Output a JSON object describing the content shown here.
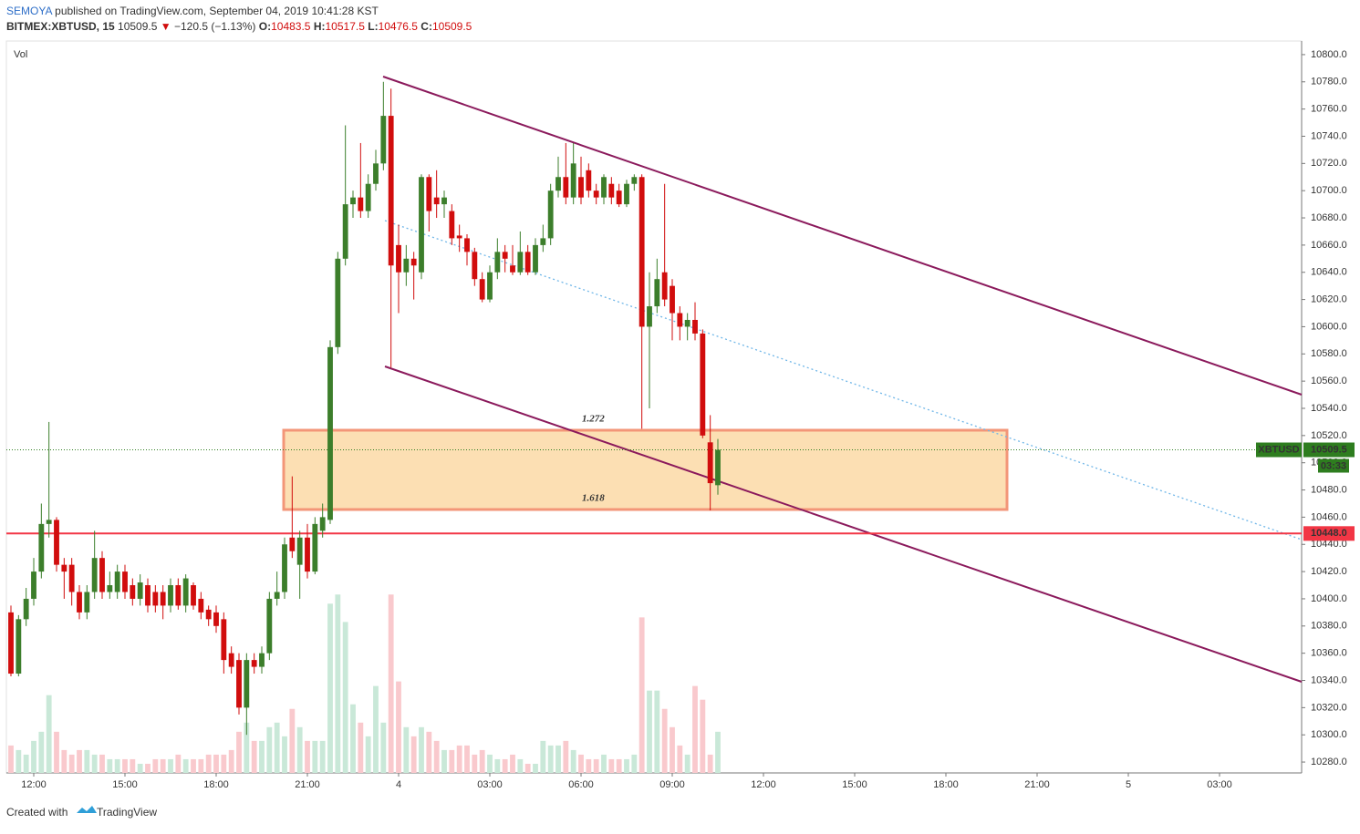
{
  "header": {
    "author": "SEMOYA",
    "published": "published on TradingView.com, September 04, 2019 10:41:28 KST",
    "symbol": "BITMEX:XBTUSD, 15",
    "last": "10509.5",
    "arrow": "▼",
    "change": "−120.5 (−1.13%)",
    "o_label": "O:",
    "open": "10483.5",
    "h_label": "H:",
    "high": "10517.5",
    "l_label": "L:",
    "low": "10476.5",
    "c_label": "C:",
    "close": "10509.5"
  },
  "footer": {
    "created": "Created with",
    "brand": "TradingView"
  },
  "annotations": {
    "fib_upper": "1.272",
    "fib_lower": "1.618"
  },
  "chart_data": {
    "type": "candlestick",
    "volume_label": "Vol",
    "up_color": "#3c7e2b",
    "down_color": "#d10d0d",
    "volume_up_color": "#c9e8d8",
    "volume_down_color": "#f9c9cd",
    "open": [
      10390,
      10345,
      10385,
      10400,
      10420,
      10455,
      10458,
      10425,
      10425,
      10405,
      10390,
      10405,
      10430,
      10405,
      10405,
      10420,
      10410,
      10400,
      10410,
      10405,
      10405,
      10395,
      10410,
      10395,
      10410,
      10400,
      10392,
      10390,
      10385,
      10360,
      10355,
      10320,
      10355,
      10350,
      10360,
      10400,
      10405,
      10445,
      10425,
      10445,
      10420,
      10450,
      10458,
      10585,
      10650,
      10690,
      10695,
      10685,
      10705,
      10720,
      10755,
      10660,
      10640,
      10650,
      10640,
      10710,
      10695,
      10690,
      10685,
      10667,
      10665,
      10655,
      10635,
      10620,
      10640,
      10655,
      10645,
      10640,
      10655,
      10640,
      10660,
      10665,
      10700,
      10710,
      10695,
      10710,
      10715,
      10700,
      10695,
      10705,
      10700,
      10690,
      10705,
      10710,
      10600,
      10615,
      10640,
      10630,
      10610,
      10600,
      10605,
      10595,
      10515,
      10483.5
    ],
    "high": [
      10395,
      10388,
      10408,
      10430,
      10470,
      10530,
      10460,
      10430,
      10430,
      10410,
      10410,
      10450,
      10435,
      10420,
      10425,
      10425,
      10415,
      10418,
      10415,
      10410,
      10410,
      10415,
      10415,
      10418,
      10412,
      10405,
      10395,
      10395,
      10390,
      10365,
      10360,
      10360,
      10360,
      10365,
      10405,
      10420,
      10445,
      10490,
      10450,
      10455,
      10460,
      10470,
      10590,
      10655,
      10748,
      10700,
      10735,
      10712,
      10730,
      10780,
      10775,
      10675,
      10660,
      10655,
      10712,
      10712,
      10715,
      10700,
      10690,
      10675,
      10668,
      10658,
      10640,
      10645,
      10665,
      10660,
      10660,
      10670,
      10660,
      10665,
      10675,
      10705,
      10725,
      10735,
      10735,
      10725,
      10720,
      10705,
      10712,
      10710,
      10705,
      10708,
      10712,
      10712,
      10640,
      10650,
      10705,
      10635,
      10615,
      10610,
      10618,
      10598,
      10535,
      10517.5
    ],
    "low": [
      10343,
      10343,
      10380,
      10395,
      10415,
      10445,
      10420,
      10400,
      10395,
      10385,
      10385,
      10400,
      10400,
      10400,
      10400,
      10400,
      10395,
      10395,
      10390,
      10390,
      10385,
      10390,
      10392,
      10390,
      10392,
      10385,
      10380,
      10375,
      10345,
      10345,
      10315,
      10300,
      10345,
      10345,
      10355,
      10395,
      10400,
      10430,
      10400,
      10415,
      10418,
      10445,
      10455,
      10580,
      10645,
      10680,
      10680,
      10680,
      10700,
      10715,
      10570,
      10610,
      10630,
      10620,
      10635,
      10670,
      10680,
      10680,
      10660,
      10655,
      10645,
      10630,
      10618,
      10618,
      10635,
      10640,
      10638,
      10638,
      10638,
      10638,
      10655,
      10660,
      10695,
      10690,
      10690,
      10690,
      10695,
      10690,
      10690,
      10690,
      10688,
      10688,
      10700,
      10525,
      10540,
      10610,
      10615,
      10590,
      10590,
      10590,
      10590,
      10518,
      10465,
      10476.5
    ],
    "close": [
      10345,
      10385,
      10400,
      10420,
      10455,
      10458,
      10425,
      10420,
      10405,
      10390,
      10405,
      10430,
      10405,
      10410,
      10420,
      10405,
      10400,
      10412,
      10395,
      10395,
      10395,
      10410,
      10395,
      10415,
      10395,
      10390,
      10385,
      10380,
      10355,
      10350,
      10320,
      10355,
      10350,
      10360,
      10400,
      10405,
      10440,
      10435,
      10445,
      10420,
      10455,
      10460,
      10585,
      10650,
      10690,
      10695,
      10685,
      10705,
      10720,
      10755,
      10645,
      10640,
      10650,
      10645,
      10710,
      10685,
      10690,
      10695,
      10665,
      10665,
      10655,
      10635,
      10620,
      10640,
      10655,
      10650,
      10640,
      10655,
      10640,
      10660,
      10665,
      10700,
      10710,
      10695,
      10720,
      10695,
      10700,
      10695,
      10710,
      10695,
      10690,
      10705,
      10710,
      10600,
      10615,
      10635,
      10620,
      10610,
      10600,
      10605,
      10595,
      10520,
      10485,
      10509.5
    ],
    "volume": [
      30,
      25,
      20,
      35,
      45,
      85,
      45,
      25,
      20,
      25,
      25,
      20,
      20,
      15,
      15,
      15,
      15,
      10,
      10,
      15,
      15,
      15,
      20,
      15,
      15,
      15,
      20,
      20,
      20,
      25,
      45,
      55,
      35,
      35,
      50,
      55,
      40,
      70,
      50,
      35,
      35,
      35,
      185,
      195,
      165,
      75,
      55,
      40,
      95,
      55,
      195,
      100,
      50,
      40,
      50,
      45,
      35,
      25,
      25,
      30,
      30,
      20,
      25,
      20,
      15,
      15,
      20,
      15,
      10,
      10,
      35,
      30,
      30,
      35,
      25,
      20,
      15,
      15,
      20,
      15,
      15,
      15,
      20,
      170,
      90,
      90,
      70,
      50,
      30,
      20,
      95,
      80,
      20,
      45
    ],
    "vlim": [
      0,
      800
    ],
    "ylim": [
      10272,
      10810
    ],
    "yticks": [
      {
        "value": 10280,
        "label": "10280.0"
      },
      {
        "value": 10300,
        "label": "10300.0"
      },
      {
        "value": 10320,
        "label": "10320.0"
      },
      {
        "value": 10340,
        "label": "10340.0"
      },
      {
        "value": 10360,
        "label": "10360.0"
      },
      {
        "value": 10380,
        "label": "10380.0"
      },
      {
        "value": 10400,
        "label": "10400.0"
      },
      {
        "value": 10420,
        "label": "10420.0"
      },
      {
        "value": 10440,
        "label": "10440.0"
      },
      {
        "value": 10460,
        "label": "10460.0"
      },
      {
        "value": 10480,
        "label": "10480.0"
      },
      {
        "value": 10500,
        "label": "10500.0"
      },
      {
        "value": 10520,
        "label": "10520.0"
      },
      {
        "value": 10540,
        "label": "10540.0"
      },
      {
        "value": 10560,
        "label": "10560.0"
      },
      {
        "value": 10580,
        "label": "10580.0"
      },
      {
        "value": 10600,
        "label": "10600.0"
      },
      {
        "value": 10620,
        "label": "10620.0"
      },
      {
        "value": 10640,
        "label": "10640.0"
      },
      {
        "value": 10660,
        "label": "10660.0"
      },
      {
        "value": 10680,
        "label": "10680.0"
      },
      {
        "value": 10700,
        "label": "10700.0"
      },
      {
        "value": 10720,
        "label": "10720.0"
      },
      {
        "value": 10740,
        "label": "10740.0"
      },
      {
        "value": 10760,
        "label": "10760.0"
      },
      {
        "value": 10780,
        "label": "10780.0"
      },
      {
        "value": 10800,
        "label": "10800.0"
      }
    ],
    "xlim": [
      -0.6,
      169.8
    ],
    "xticks": [
      {
        "value": 3,
        "label": "12:00"
      },
      {
        "value": 15,
        "label": "15:00"
      },
      {
        "value": 27,
        "label": "18:00"
      },
      {
        "value": 39,
        "label": "21:00"
      },
      {
        "value": 51,
        "label": "4"
      },
      {
        "value": 63,
        "label": "03:00"
      },
      {
        "value": 75,
        "label": "06:00"
      },
      {
        "value": 87,
        "label": "09:00"
      },
      {
        "value": 99,
        "label": "12:00"
      },
      {
        "value": 111,
        "label": "15:00"
      },
      {
        "value": 123,
        "label": "18:00"
      },
      {
        "value": 135,
        "label": "21:00"
      },
      {
        "value": 147,
        "label": "5"
      },
      {
        "value": 159,
        "label": "03:00"
      }
    ],
    "last_price": {
      "value": 10509.5,
      "label": "10509.5",
      "symbol": "XBTUSD",
      "countdown": "03:33",
      "color": "#2e7d1f"
    },
    "level": {
      "value": 10448,
      "label": "10448.0",
      "color": "#f23645"
    }
  }
}
